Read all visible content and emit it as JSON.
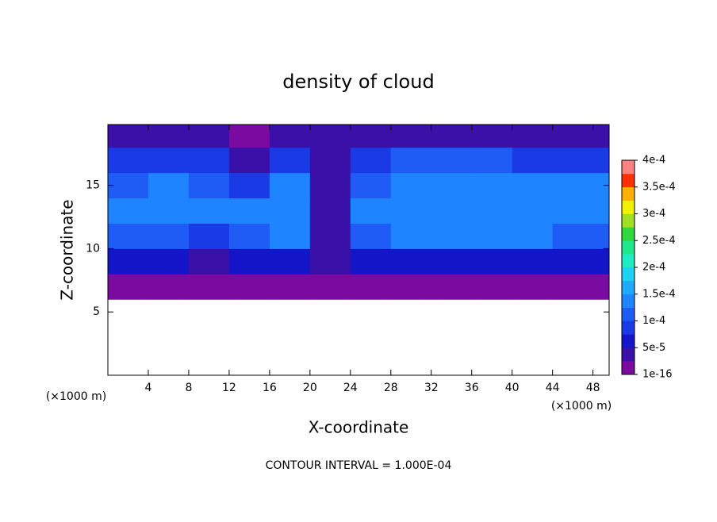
{
  "chart_data": {
    "type": "heatmap",
    "title": "density of cloud",
    "x_label": "X-coordinate",
    "y_label": "Z-coordinate",
    "x_unit_label": "(×1000 m)",
    "y_unit_label": "(×1000 m)",
    "footer": "CONTOUR INTERVAL = 1.000E-04",
    "x": [
      2,
      6,
      10,
      14,
      18,
      22,
      26,
      30,
      34,
      38,
      42,
      46,
      50
    ],
    "y": [
      1,
      3,
      5,
      7,
      9,
      11,
      13,
      15,
      17,
      19
    ],
    "values": [
      [
        null,
        null,
        null,
        null,
        null,
        null,
        null,
        null,
        null,
        null,
        null,
        null,
        null
      ],
      [
        null,
        null,
        null,
        null,
        null,
        null,
        null,
        null,
        null,
        null,
        null,
        null,
        null
      ],
      [
        null,
        null,
        null,
        null,
        null,
        null,
        null,
        null,
        null,
        null,
        null,
        null,
        null
      ],
      [
        1.5e-05,
        1.5e-05,
        1.5e-05,
        2e-05,
        1.5e-05,
        2e-05,
        1.5e-05,
        1.5e-05,
        1.5e-05,
        1.5e-05,
        1.5e-05,
        1.5e-05,
        1.5e-05
      ],
      [
        7e-05,
        7e-05,
        5e-05,
        6e-05,
        7e-05,
        3e-05,
        7e-05,
        7e-05,
        7e-05,
        7e-05,
        7e-05,
        7e-05,
        7e-05
      ],
      [
        0.00011,
        0.00012,
        0.0001,
        0.00012,
        0.00013,
        5e-05,
        0.00011,
        0.00013,
        0.00013,
        0.00013,
        0.00013,
        0.00012,
        0.00012
      ],
      [
        0.00013,
        0.00014,
        0.00013,
        0.00014,
        0.00014,
        5e-05,
        0.00013,
        0.00015,
        0.00015,
        0.00015,
        0.00015,
        0.00014,
        0.00014
      ],
      [
        0.00012,
        0.00014,
        0.00012,
        9e-05,
        0.00013,
        5e-05,
        0.00012,
        0.00014,
        0.00014,
        0.00014,
        0.00014,
        0.00013,
        0.00013
      ],
      [
        9e-05,
        0.0001,
        9e-05,
        4e-05,
        0.0001,
        4e-05,
        9e-05,
        0.00011,
        0.00011,
        0.00011,
        0.0001,
        0.0001,
        9e-05
      ],
      [
        4e-05,
        4e-05,
        4e-05,
        2e-05,
        4e-05,
        3e-05,
        4e-05,
        4e-05,
        4e-05,
        4e-05,
        4e-05,
        4e-05,
        4e-05
      ]
    ],
    "cell_width": 4,
    "cell_height": 2,
    "xlim": [
      0,
      49.6
    ],
    "ylim": [
      0,
      19.8
    ],
    "xticks": [
      4,
      8,
      12,
      16,
      20,
      24,
      28,
      32,
      36,
      40,
      44,
      48
    ],
    "yticks": [
      5,
      10,
      15
    ],
    "colorbar_ticks": [
      {
        "value": 1e-16,
        "label": "1e-16"
      },
      {
        "value": 5e-05,
        "label": "5e-5"
      },
      {
        "value": 0.0001,
        "label": "1e-4"
      },
      {
        "value": 0.00015,
        "label": "1.5e-4"
      },
      {
        "value": 0.0002,
        "label": "2e-4"
      },
      {
        "value": 0.00025,
        "label": "2.5e-4"
      },
      {
        "value": 0.0003,
        "label": "3e-4"
      },
      {
        "value": 0.00035,
        "label": "3.5e-4"
      },
      {
        "value": 0.0004,
        "label": "4e-4"
      }
    ],
    "colors": [
      "#7a0aa0",
      "#3a10a8",
      "#1414c8",
      "#1a3ae6",
      "#1e5cf5",
      "#1e84ff",
      "#1eaaff",
      "#1ed2f4",
      "#20ecc4",
      "#20e68c",
      "#30d840",
      "#a0e020",
      "#f0f000",
      "#ffb000",
      "#ff3000",
      "#ff8080"
    ]
  }
}
